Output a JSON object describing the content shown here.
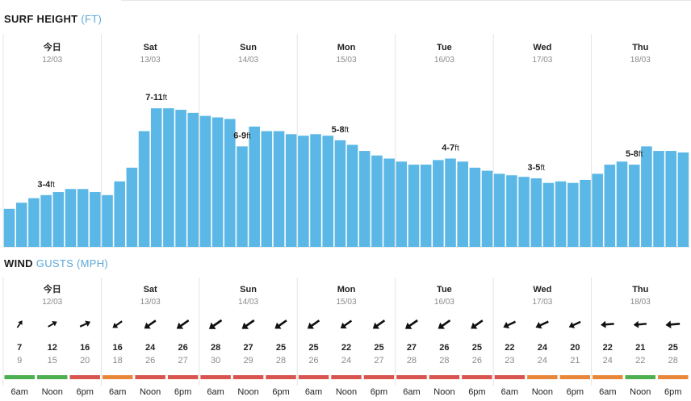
{
  "surf": {
    "title_strong": "SURF HEIGHT",
    "title_unit": "(FT)"
  },
  "wind": {
    "title_strong": "WIND",
    "title_muted": "GUSTS",
    "title_unit": "(MPH)"
  },
  "days": [
    {
      "name": "今日",
      "date": "12/03"
    },
    {
      "name": "Sat",
      "date": "13/03"
    },
    {
      "name": "Sun",
      "date": "14/03"
    },
    {
      "name": "Mon",
      "date": "15/03"
    },
    {
      "name": "Tue",
      "date": "16/03"
    },
    {
      "name": "Wed",
      "date": "17/03"
    },
    {
      "name": "Thu",
      "date": "18/03"
    }
  ],
  "chart_data": {
    "type": "bar",
    "bar_color": "#5bb8e6",
    "surf_bars_per_day": 8,
    "surf_values": [
      2.5,
      2.9,
      3.2,
      3.4,
      3.6,
      3.8,
      3.8,
      3.6,
      3.4,
      4.3,
      5.2,
      7.6,
      9.1,
      9.1,
      9.0,
      8.8,
      8.6,
      8.5,
      8.4,
      6.6,
      7.9,
      7.6,
      7.6,
      7.4,
      7.3,
      7.4,
      7.3,
      7.0,
      6.7,
      6.3,
      6.0,
      5.8,
      5.6,
      5.4,
      5.4,
      5.7,
      5.8,
      5.6,
      5.2,
      5.0,
      4.8,
      4.7,
      4.6,
      4.5,
      4.2,
      4.3,
      4.2,
      4.4,
      4.8,
      5.4,
      5.6,
      5.4,
      6.6,
      6.3,
      6.3,
      6.2
    ],
    "surf_labels": [
      {
        "bar": 3,
        "value": "3-4",
        "unit": "ft"
      },
      {
        "bar": 12,
        "value": "7-11",
        "unit": "ft"
      },
      {
        "bar": 19,
        "value": "6-9",
        "unit": "ft"
      },
      {
        "bar": 27,
        "value": "5-8",
        "unit": "ft"
      },
      {
        "bar": 36,
        "value": "4-7",
        "unit": "ft"
      },
      {
        "bar": 43,
        "value": "3-5",
        "unit": "ft"
      },
      {
        "bar": 51,
        "value": "5-8",
        "unit": "ft"
      }
    ],
    "times": [
      "6am",
      "Noon",
      "6pm"
    ],
    "wind": [
      {
        "speed": 7,
        "gust": 9,
        "dir": 35,
        "color": "#4caf50"
      },
      {
        "speed": 12,
        "gust": 15,
        "dir": 60,
        "color": "#4caf50"
      },
      {
        "speed": 16,
        "gust": 20,
        "dir": 65,
        "color": "#d9534f"
      },
      {
        "speed": 16,
        "gust": 18,
        "dir": 235,
        "color": "#e8873a"
      },
      {
        "speed": 24,
        "gust": 26,
        "dir": 235,
        "color": "#d9534f"
      },
      {
        "speed": 26,
        "gust": 27,
        "dir": 235,
        "color": "#d9534f"
      },
      {
        "speed": 28,
        "gust": 30,
        "dir": 235,
        "color": "#d9534f"
      },
      {
        "speed": 27,
        "gust": 29,
        "dir": 235,
        "color": "#d9534f"
      },
      {
        "speed": 25,
        "gust": 28,
        "dir": 235,
        "color": "#d9534f"
      },
      {
        "speed": 25,
        "gust": 26,
        "dir": 235,
        "color": "#d9534f"
      },
      {
        "speed": 22,
        "gust": 24,
        "dir": 235,
        "color": "#d9534f"
      },
      {
        "speed": 25,
        "gust": 27,
        "dir": 235,
        "color": "#d9534f"
      },
      {
        "speed": 27,
        "gust": 28,
        "dir": 235,
        "color": "#d9534f"
      },
      {
        "speed": 26,
        "gust": 28,
        "dir": 235,
        "color": "#d9534f"
      },
      {
        "speed": 25,
        "gust": 26,
        "dir": 235,
        "color": "#d9534f"
      },
      {
        "speed": 22,
        "gust": 23,
        "dir": 245,
        "color": "#d9534f"
      },
      {
        "speed": 24,
        "gust": 24,
        "dir": 245,
        "color": "#e8873a"
      },
      {
        "speed": 20,
        "gust": 21,
        "dir": 245,
        "color": "#e8873a"
      },
      {
        "speed": 22,
        "gust": 24,
        "dir": 265,
        "color": "#e8873a"
      },
      {
        "speed": 21,
        "gust": 22,
        "dir": 265,
        "color": "#4caf50"
      },
      {
        "speed": 25,
        "gust": 28,
        "dir": 265,
        "color": "#e8873a"
      }
    ]
  }
}
